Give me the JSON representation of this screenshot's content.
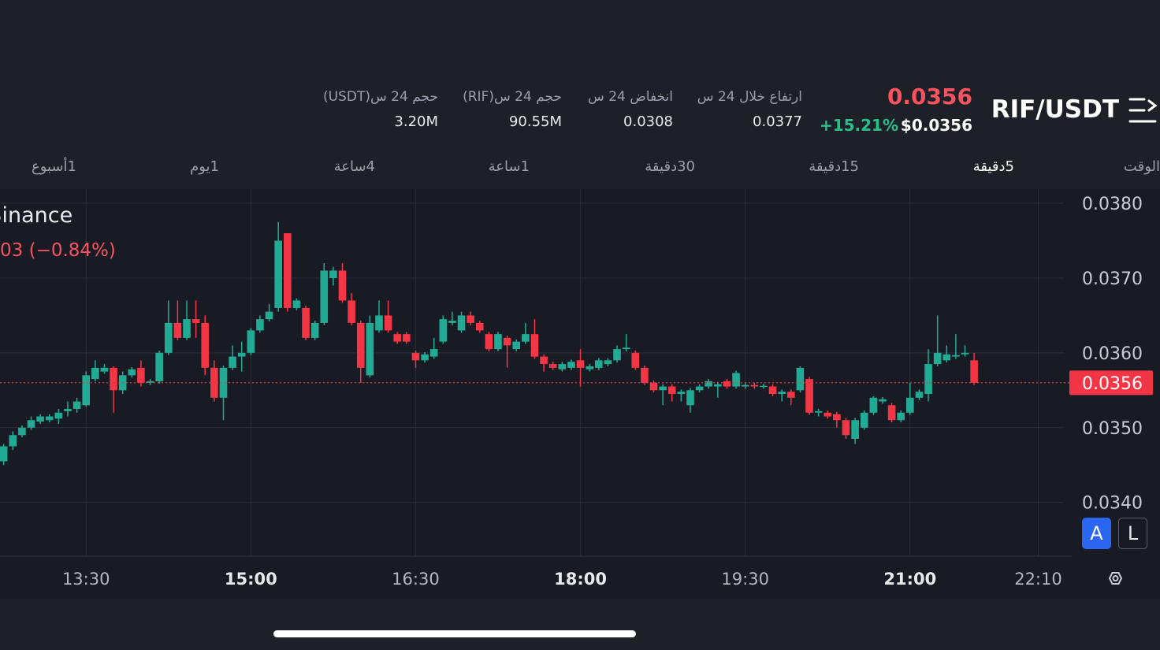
{
  "header": {
    "symbol": "RIF/USDT",
    "price": "0.0356",
    "price_usd": "$0.0356",
    "change": "+15.21%"
  },
  "stats": [
    {
      "label": "ارتفاع خلال 24 س",
      "value": "0.0377"
    },
    {
      "label": "انخفاض 24 س",
      "value": "0.0308"
    },
    {
      "label": "حجم 24 س(RIF)",
      "value": "90.55M"
    },
    {
      "label": "حجم 24 س(USDT)",
      "value": "3.20M"
    }
  ],
  "timeframes": [
    "الوقت",
    "5دقيقة",
    "15دقيقة",
    "30دقيقة",
    "1ساعة",
    "4ساعة",
    "1يوم",
    "1أسبوع"
  ],
  "active_timeframe": 1,
  "legend": {
    "exchange": "Binance",
    "change": "03 (−0.84%)"
  },
  "buttons": [
    "A",
    "L"
  ],
  "chart_data": {
    "type": "candlestick",
    "x": [
      "12:45",
      "12:50",
      "12:55",
      "13:00",
      "13:05",
      "13:10",
      "13:15",
      "13:20",
      "13:25",
      "13:30",
      "13:35",
      "13:40",
      "13:45",
      "13:50",
      "13:55",
      "14:00",
      "14:05",
      "14:10",
      "14:15",
      "14:20",
      "14:25",
      "14:30",
      "14:35",
      "14:40",
      "14:45",
      "14:50",
      "14:55",
      "15:00",
      "15:05",
      "15:10",
      "15:15",
      "15:20",
      "15:25",
      "15:30",
      "15:35",
      "15:40",
      "15:45",
      "15:50",
      "15:55",
      "16:00",
      "16:05",
      "16:10",
      "16:15",
      "16:20",
      "16:25",
      "16:30",
      "16:35",
      "16:40",
      "16:45",
      "16:50",
      "16:55",
      "17:00",
      "17:05",
      "17:10",
      "17:15",
      "17:20",
      "17:25",
      "17:30",
      "17:35",
      "17:40",
      "17:45",
      "17:50",
      "17:55",
      "18:00",
      "18:05",
      "18:10",
      "18:15",
      "18:20",
      "18:25",
      "18:30",
      "18:35",
      "18:40",
      "18:45",
      "18:50",
      "18:55",
      "19:00",
      "19:05",
      "19:10",
      "19:15",
      "19:20",
      "19:25",
      "19:30",
      "19:35",
      "19:40",
      "19:45",
      "19:50",
      "19:55",
      "20:00",
      "20:05",
      "20:10",
      "20:15",
      "20:20",
      "20:25",
      "20:30",
      "20:35",
      "20:40",
      "20:45",
      "20:50",
      "20:55",
      "21:00",
      "21:05",
      "21:10",
      "21:15",
      "21:20",
      "21:25",
      "21:30",
      "21:35"
    ],
    "open": [
      0.03455,
      0.03475,
      0.0349,
      0.035,
      0.03508,
      0.0351,
      0.03512,
      0.03522,
      0.03525,
      0.0353,
      0.03565,
      0.03575,
      0.0358,
      0.0355,
      0.0357,
      0.0358,
      0.0356,
      0.03562,
      0.036,
      0.0364,
      0.0362,
      0.03645,
      0.0364,
      0.0358,
      0.0354,
      0.0358,
      0.03595,
      0.036,
      0.0363,
      0.03645,
      0.0366,
      0.0376,
      0.0366,
      0.0366,
      0.0362,
      0.0364,
      0.037,
      0.0371,
      0.0367,
      0.0364,
      0.0357,
      0.0363,
      0.0365,
      0.03625,
      0.03625,
      0.036,
      0.0359,
      0.03595,
      0.03615,
      0.0364,
      0.0363,
      0.0365,
      0.0364,
      0.03625,
      0.03605,
      0.0362,
      0.03605,
      0.03615,
      0.03625,
      0.03595,
      0.03585,
      0.03578,
      0.0358,
      0.0359,
      0.03578,
      0.0358,
      0.03585,
      0.0359,
      0.03605,
      0.036,
      0.0358,
      0.0356,
      0.0355,
      0.03555,
      0.03545,
      0.0353,
      0.0355,
      0.03555,
      0.03555,
      0.03562,
      0.03555,
      0.03555,
      0.03557,
      0.03555,
      0.03555,
      0.03545,
      0.03548,
      0.0355,
      0.03565,
      0.0352,
      0.0352,
      0.03518,
      0.0351,
      0.03485,
      0.035,
      0.0352,
      0.03535,
      0.0353,
      0.0351,
      0.0352,
      0.0354,
      0.03545,
      0.03585,
      0.0359,
      0.03595,
      0.03598,
      0.0359
    ],
    "high": [
      0.03478,
      0.03495,
      0.03503,
      0.03515,
      0.03518,
      0.03518,
      0.03525,
      0.03535,
      0.0354,
      0.03575,
      0.0359,
      0.03585,
      0.03582,
      0.03575,
      0.03581,
      0.0359,
      0.03565,
      0.03603,
      0.0367,
      0.0367,
      0.0367,
      0.0367,
      0.0365,
      0.0359,
      0.03583,
      0.0361,
      0.03615,
      0.03633,
      0.0365,
      0.03665,
      0.03775,
      0.0376,
      0.03673,
      0.03663,
      0.03643,
      0.0372,
      0.03715,
      0.0372,
      0.0368,
      0.03643,
      0.0365,
      0.0367,
      0.0367,
      0.03628,
      0.03628,
      0.03603,
      0.03601,
      0.0362,
      0.0365,
      0.03655,
      0.03655,
      0.03655,
      0.03643,
      0.03628,
      0.03628,
      0.03623,
      0.03618,
      0.0364,
      0.03645,
      0.03598,
      0.03588,
      0.03588,
      0.03591,
      0.03605,
      0.03585,
      0.03593,
      0.03593,
      0.0361,
      0.03625,
      0.03603,
      0.03583,
      0.03563,
      0.03558,
      0.03558,
      0.03551,
      0.03553,
      0.03558,
      0.03565,
      0.03561,
      0.03565,
      0.03576,
      0.0356,
      0.0356,
      0.03559,
      0.03558,
      0.03551,
      0.03551,
      0.03582,
      0.03568,
      0.03525,
      0.03523,
      0.03521,
      0.03513,
      0.03513,
      0.03523,
      0.03542,
      0.03541,
      0.03533,
      0.03523,
      0.0356,
      0.03551,
      0.03605,
      0.0365,
      0.0361,
      0.03625,
      0.0361,
      0.036
    ],
    "low": [
      0.0345,
      0.0347,
      0.03487,
      0.03497,
      0.03505,
      0.03507,
      0.03505,
      0.03515,
      0.0352,
      0.03528,
      0.03562,
      0.03572,
      0.0352,
      0.03545,
      0.03567,
      0.03555,
      0.03557,
      0.03559,
      0.03597,
      0.03617,
      0.03617,
      0.0362,
      0.0357,
      0.03535,
      0.0351,
      0.03577,
      0.03575,
      0.03597,
      0.03627,
      0.03642,
      0.03655,
      0.03655,
      0.03657,
      0.03617,
      0.03617,
      0.03637,
      0.0369,
      0.03667,
      0.03637,
      0.0356,
      0.03567,
      0.03627,
      0.03627,
      0.03612,
      0.03612,
      0.0358,
      0.03587,
      0.03592,
      0.03612,
      0.03637,
      0.03627,
      0.03637,
      0.03627,
      0.03602,
      0.03602,
      0.0358,
      0.03602,
      0.03612,
      0.03592,
      0.03575,
      0.03577,
      0.03575,
      0.03577,
      0.03555,
      0.03575,
      0.03577,
      0.03582,
      0.03587,
      0.03602,
      0.03577,
      0.03557,
      0.03547,
      0.0353,
      0.03535,
      0.03535,
      0.0352,
      0.03547,
      0.03552,
      0.0354,
      0.03552,
      0.03552,
      0.03552,
      0.03552,
      0.03552,
      0.03542,
      0.03535,
      0.0353,
      0.03547,
      0.03517,
      0.03515,
      0.03512,
      0.035,
      0.03485,
      0.03478,
      0.03497,
      0.03517,
      0.03532,
      0.03507,
      0.03507,
      0.03517,
      0.03537,
      0.03535,
      0.03582,
      0.03587,
      0.03592,
      0.03595,
      0.03557
    ],
    "close": [
      0.03475,
      0.0349,
      0.035,
      0.0351,
      0.03515,
      0.03515,
      0.0352,
      0.03525,
      0.03535,
      0.0357,
      0.0358,
      0.0358,
      0.0355,
      0.0357,
      0.03578,
      0.0356,
      0.03562,
      0.036,
      0.0364,
      0.0362,
      0.03645,
      0.0364,
      0.0358,
      0.0354,
      0.0358,
      0.03595,
      0.036,
      0.0363,
      0.03645,
      0.03655,
      0.0375,
      0.0366,
      0.0367,
      0.0362,
      0.0364,
      0.0371,
      0.0371,
      0.0367,
      0.0364,
      0.0358,
      0.0364,
      0.0365,
      0.0363,
      0.03615,
      0.03615,
      0.0359,
      0.03598,
      0.03605,
      0.03645,
      0.03643,
      0.0365,
      0.0364,
      0.0363,
      0.03605,
      0.03625,
      0.0361,
      0.03615,
      0.03625,
      0.03595,
      0.03585,
      0.0358,
      0.03585,
      0.03588,
      0.0358,
      0.03582,
      0.0359,
      0.0359,
      0.03605,
      0.03607,
      0.0358,
      0.0356,
      0.0355,
      0.03555,
      0.03545,
      0.03548,
      0.0355,
      0.03555,
      0.03562,
      0.03558,
      0.03555,
      0.03573,
      0.03557,
      0.03555,
      0.03556,
      0.03545,
      0.03548,
      0.0354,
      0.0358,
      0.0352,
      0.03522,
      0.03515,
      0.0351,
      0.0349,
      0.0351,
      0.0352,
      0.0354,
      0.03538,
      0.0351,
      0.0352,
      0.0354,
      0.03548,
      0.03585,
      0.036,
      0.03598,
      0.03597,
      0.036,
      0.0356
    ],
    "up_color": "#22ab94",
    "down_color": "#f23645",
    "last_price": 0.0356,
    "xlim": [
      "12:43",
      "22:24"
    ],
    "xticks": [
      "13:30",
      "15:00",
      "16:30",
      "18:00",
      "19:30",
      "21:00",
      "22:10"
    ],
    "ylim": [
      0.03328,
      0.03819
    ],
    "yticks": [
      {
        "value": 0.038,
        "label": "0.0380"
      },
      {
        "value": 0.037,
        "label": "0.0370"
      },
      {
        "value": 0.036,
        "label": "0.0360"
      },
      {
        "value": 0.035,
        "label": "0.0350"
      },
      {
        "value": 0.034,
        "label": "0.0340"
      }
    ],
    "grid": true
  }
}
